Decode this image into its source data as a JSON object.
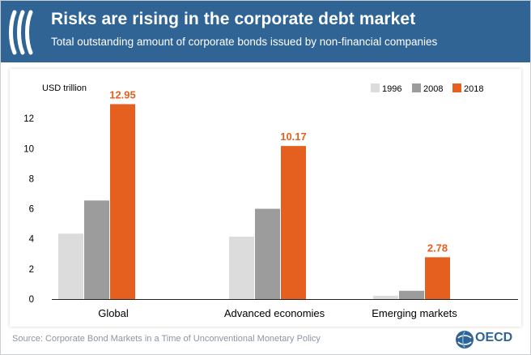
{
  "header": {
    "title": "Risks are rising in the corporate debt market",
    "subtitle": "Total outstanding amount of corporate bonds issued by non-financial companies",
    "logo_icon": "oecd-stripes-icon"
  },
  "footer": {
    "source": "Source: Corporate Bond Markets in a Time of Unconventional Monetary Policy",
    "brand": "OECD",
    "brand_icon": "oecd-globe-icon"
  },
  "colors": {
    "header_bg": "#2f6495",
    "s1996": "#dcdcdc",
    "s2008": "#9c9c9c",
    "s2018": "#e5601f",
    "label_orange": "#e5601f"
  },
  "chart_data": {
    "type": "bar",
    "title": "Risks are rising in the corporate debt market",
    "subtitle": "Total outstanding amount of corporate bonds issued by non-financial companies",
    "ylabel": "USD trillion",
    "xlabel": "",
    "ylim": [
      0,
      14
    ],
    "yticks": [
      0,
      2,
      4,
      6,
      8,
      10,
      12
    ],
    "grid": false,
    "legend_position": "top-right",
    "categories": [
      "Global",
      "Advanced economies",
      "Emerging markets"
    ],
    "series": [
      {
        "name": "1996",
        "color": "#dcdcdc",
        "values": [
          4.35,
          4.15,
          0.22
        ]
      },
      {
        "name": "2008",
        "color": "#9c9c9c",
        "values": [
          6.55,
          6.0,
          0.55
        ]
      },
      {
        "name": "2018",
        "color": "#e5601f",
        "values": [
          12.95,
          10.17,
          2.78
        ]
      }
    ],
    "data_labels": [
      "12.95",
      "10.17",
      "2.78"
    ]
  }
}
